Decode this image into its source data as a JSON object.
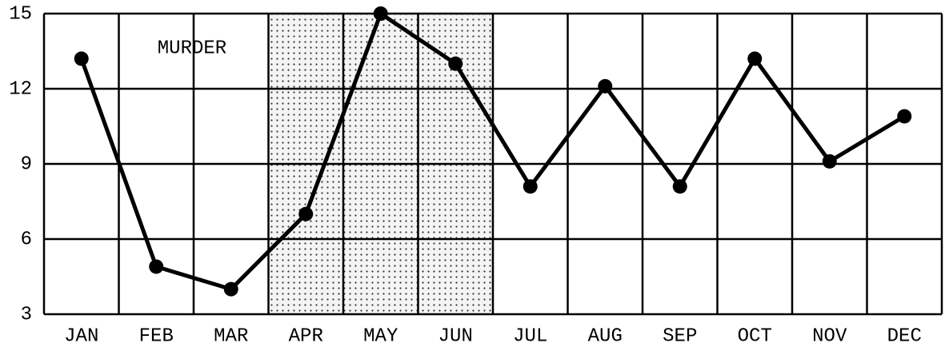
{
  "chart_data": {
    "type": "line",
    "categories": [
      "JAN",
      "FEB",
      "MAR",
      "APR",
      "MAY",
      "JUN",
      "JUL",
      "AUG",
      "SEP",
      "OCT",
      "NOV",
      "DEC"
    ],
    "series": [
      {
        "name": "MURDER",
        "color": "#000000",
        "values": [
          13.2,
          4.9,
          4.0,
          7.0,
          15.0,
          13.0,
          8.1,
          12.1,
          8.1,
          13.2,
          9.1,
          10.9
        ]
      }
    ],
    "ylim": [
      3,
      15
    ],
    "yticks": [
      3,
      6,
      9,
      12,
      15
    ],
    "grid": true,
    "shaded_categories": [
      "APR",
      "MAY",
      "JUN"
    ]
  }
}
